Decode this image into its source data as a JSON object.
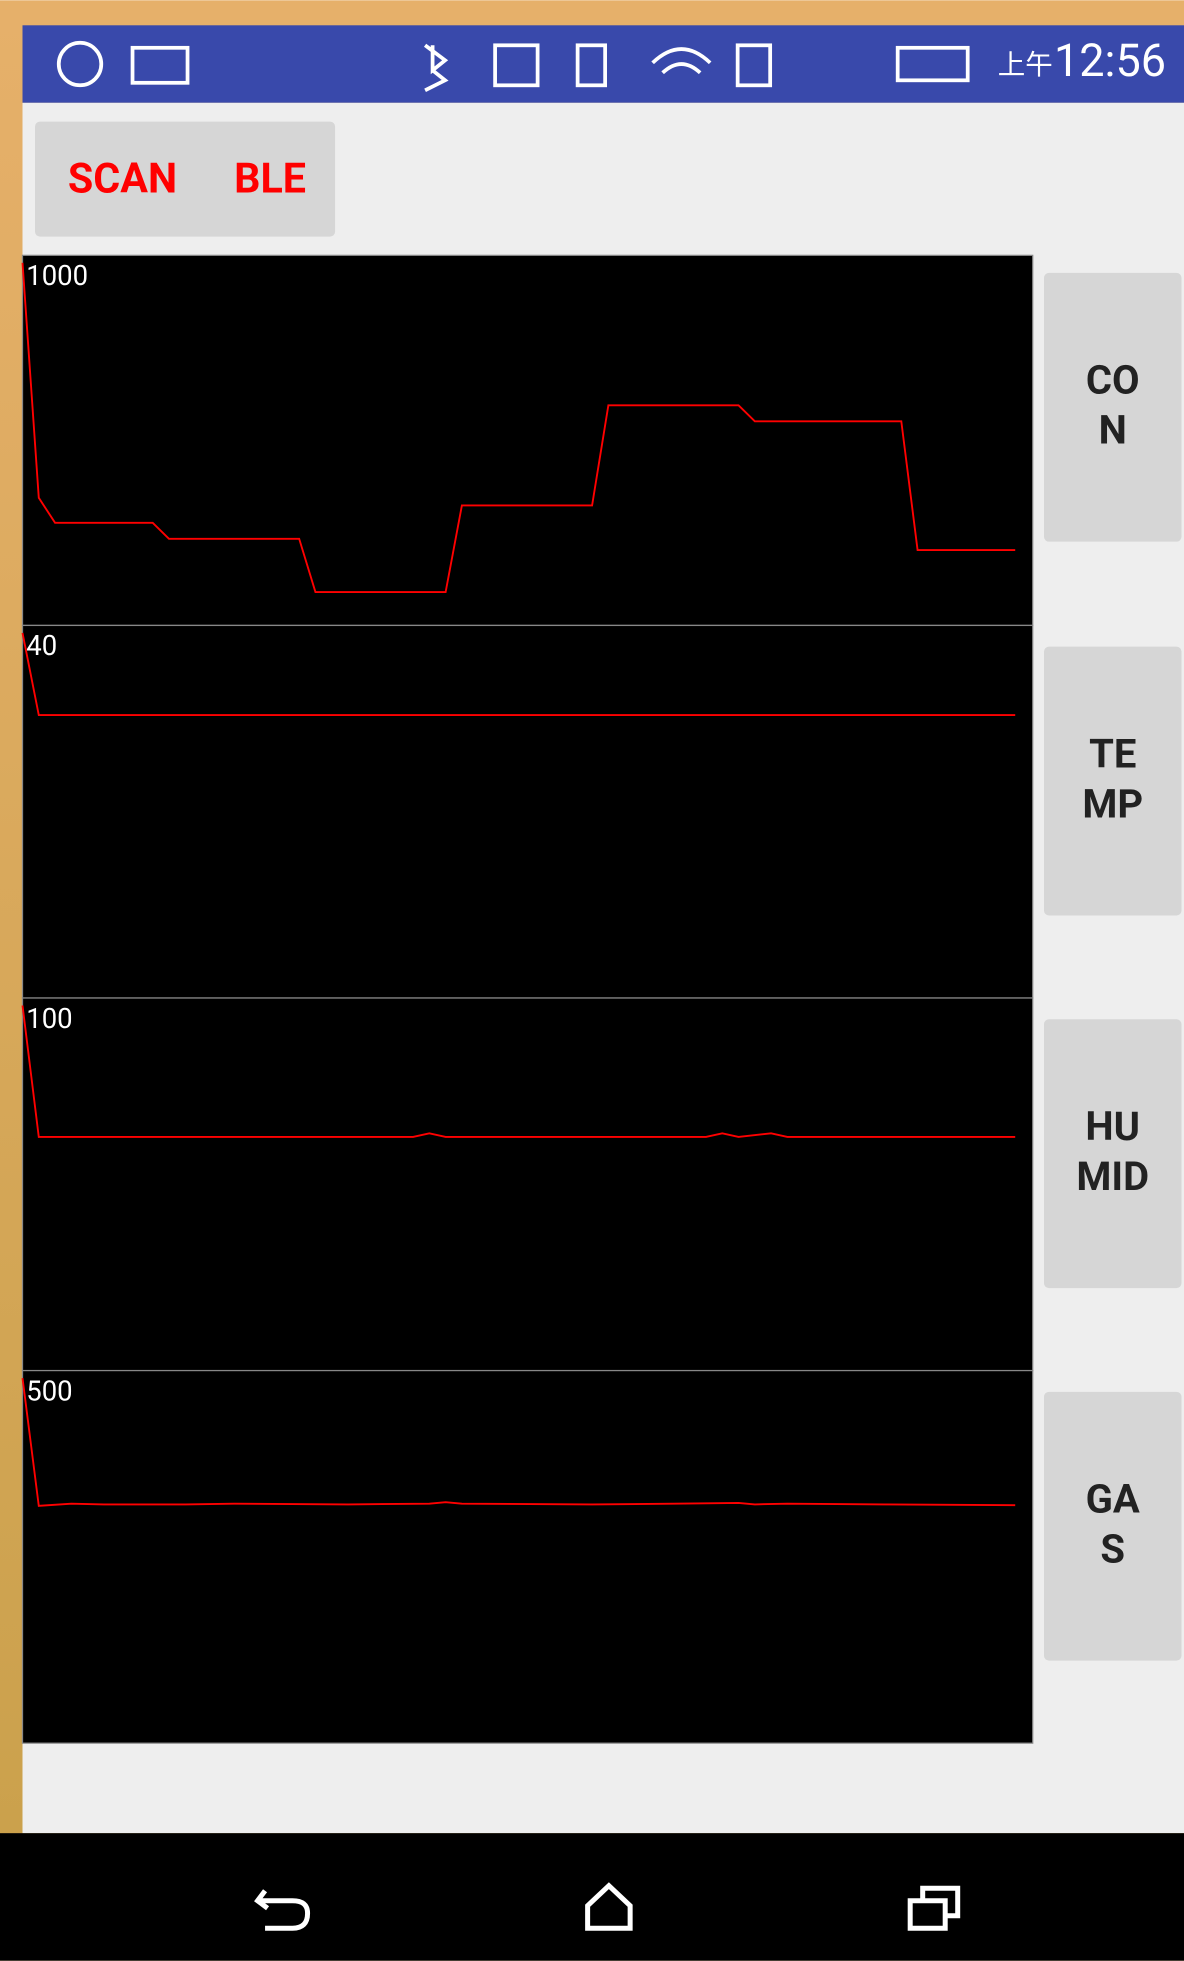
{
  "status_bar": {
    "am_pm": "上午",
    "time": "12:56"
  },
  "scan_button": {
    "words": [
      "SCAN",
      "BLE"
    ]
  },
  "side_buttons": [
    [
      "CO",
      "N"
    ],
    [
      "TE",
      "MP"
    ],
    [
      "HU",
      "MID"
    ],
    [
      "GA",
      "S"
    ]
  ],
  "chart_data": [
    {
      "type": "line",
      "color": "#ff0000",
      "xlim": [
        0,
        61
      ],
      "ylim": [
        0,
        1000
      ],
      "yticks": [
        1000
      ],
      "x": [
        0,
        1,
        2,
        8,
        9,
        17,
        18,
        26,
        27,
        35,
        36,
        44,
        45,
        54,
        55,
        61
      ],
      "values": [
        1000,
        352,
        283,
        283,
        239,
        239,
        92,
        92,
        331,
        331,
        607,
        607,
        563,
        563,
        208,
        208
      ]
    },
    {
      "type": "line",
      "color": "#ff0000",
      "xlim": [
        0,
        61
      ],
      "ylim": [
        0,
        40
      ],
      "yticks": [
        40
      ],
      "x": [
        0,
        1,
        61
      ],
      "values": [
        40,
        31,
        31
      ]
    },
    {
      "type": "line",
      "color": "#ff0000",
      "xlim": [
        0,
        61
      ],
      "ylim": [
        0,
        100
      ],
      "yticks": [
        100
      ],
      "x": [
        0,
        1,
        24,
        25,
        26,
        42,
        43,
        44,
        46,
        47,
        61
      ],
      "values": [
        100,
        64,
        64,
        65,
        64,
        64,
        65,
        64,
        65,
        64,
        64
      ]
    },
    {
      "type": "line",
      "color": "#ff0000",
      "xlim": [
        0,
        61
      ],
      "ylim": [
        0,
        500
      ],
      "yticks": [
        500
      ],
      "x": [
        0,
        1,
        3,
        5,
        10,
        13,
        20,
        25,
        26,
        27,
        35,
        40,
        44,
        45,
        47,
        53,
        61
      ],
      "values": [
        500,
        325,
        328,
        327,
        327,
        328,
        327,
        328,
        330,
        328,
        327,
        328,
        329,
        327,
        328,
        327,
        326
      ]
    }
  ]
}
